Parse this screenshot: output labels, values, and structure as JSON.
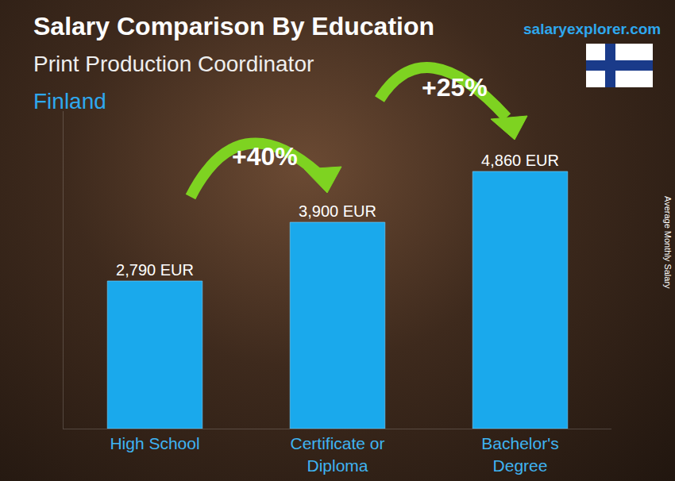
{
  "chart_data": {
    "type": "bar",
    "title": "Salary Comparison By Education",
    "subtitle": "Print Production Coordinator",
    "annotations": [
      "Finland",
      "salaryexplorer.com",
      "+40%",
      "+25%"
    ],
    "ylabel": "Average Monthly Salary",
    "categories": [
      "High School",
      "Certificate or Diploma",
      "Bachelor's Degree"
    ],
    "values": [
      2790,
      3900,
      4860
    ],
    "value_labels": [
      "2,790 EUR",
      "3,900 EUR",
      "4,860 EUR"
    ],
    "color": "#1aa9ec",
    "ylim": [
      0,
      6000
    ],
    "data_labels": true,
    "tick_labels": "x",
    "grid": false
  }
}
